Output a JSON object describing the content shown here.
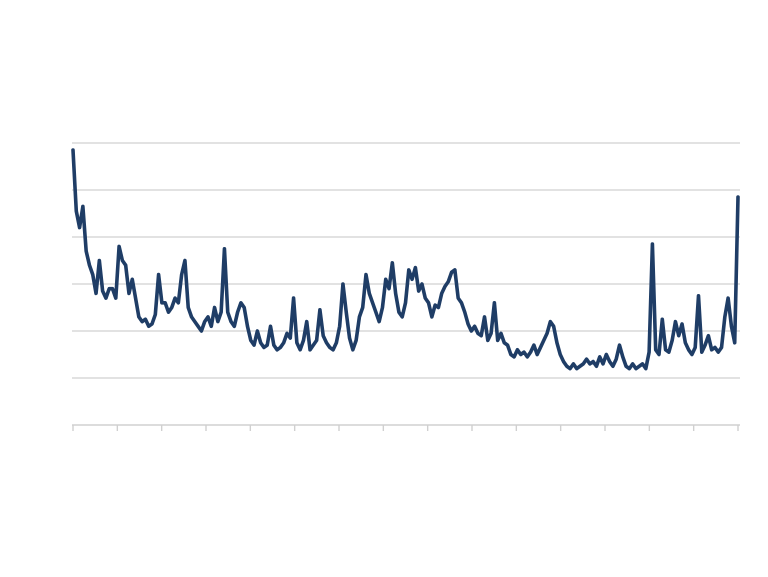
{
  "chart_data": {
    "type": "line",
    "grid": true,
    "legend": "none",
    "ylim": [
      0,
      6
    ],
    "y_gridlines": [
      1,
      2,
      3,
      4,
      5,
      6
    ],
    "x_tick_count": 16,
    "colors": {
      "line": "#1f3d66",
      "grid": "#d9d9d9",
      "axis": "#d0d0d0",
      "background": "#ffffff"
    },
    "series": [
      {
        "values": [
          5.85,
          4.55,
          4.2,
          4.65,
          3.7,
          3.4,
          3.2,
          2.8,
          3.5,
          2.85,
          2.7,
          2.9,
          2.9,
          2.7,
          3.8,
          3.5,
          3.4,
          2.8,
          3.1,
          2.7,
          2.3,
          2.2,
          2.25,
          2.1,
          2.15,
          2.35,
          3.2,
          2.6,
          2.6,
          2.4,
          2.5,
          2.7,
          2.6,
          3.2,
          3.5,
          2.5,
          2.3,
          2.2,
          2.1,
          2.0,
          2.2,
          2.3,
          2.1,
          2.5,
          2.2,
          2.4,
          3.75,
          2.4,
          2.2,
          2.1,
          2.4,
          2.6,
          2.5,
          2.1,
          1.8,
          1.7,
          2.0,
          1.75,
          1.65,
          1.7,
          2.1,
          1.7,
          1.6,
          1.65,
          1.75,
          1.95,
          1.85,
          2.7,
          1.75,
          1.6,
          1.8,
          2.2,
          1.6,
          1.7,
          1.8,
          2.45,
          1.9,
          1.75,
          1.65,
          1.6,
          1.75,
          2.1,
          3.0,
          2.4,
          1.85,
          1.6,
          1.8,
          2.3,
          2.5,
          3.2,
          2.8,
          2.6,
          2.4,
          2.2,
          2.5,
          3.1,
          2.9,
          3.45,
          2.8,
          2.4,
          2.3,
          2.6,
          3.3,
          3.1,
          3.35,
          2.85,
          3.0,
          2.7,
          2.6,
          2.3,
          2.55,
          2.5,
          2.8,
          2.95,
          3.05,
          3.25,
          3.3,
          2.7,
          2.6,
          2.4,
          2.15,
          2.0,
          2.1,
          1.95,
          1.9,
          2.3,
          1.8,
          1.95,
          2.6,
          1.8,
          1.95,
          1.75,
          1.7,
          1.5,
          1.45,
          1.6,
          1.5,
          1.55,
          1.45,
          1.55,
          1.7,
          1.5,
          1.65,
          1.8,
          1.95,
          2.2,
          2.1,
          1.75,
          1.5,
          1.35,
          1.25,
          1.2,
          1.3,
          1.2,
          1.25,
          1.3,
          1.4,
          1.3,
          1.35,
          1.25,
          1.45,
          1.3,
          1.5,
          1.35,
          1.25,
          1.4,
          1.7,
          1.45,
          1.25,
          1.2,
          1.3,
          1.2,
          1.25,
          1.3,
          1.2,
          1.55,
          3.85,
          1.6,
          1.5,
          2.25,
          1.6,
          1.55,
          1.8,
          2.2,
          1.9,
          2.15,
          1.75,
          1.6,
          1.5,
          1.65,
          2.75,
          1.55,
          1.7,
          1.9,
          1.6,
          1.65,
          1.55,
          1.65,
          2.3,
          2.7,
          2.1,
          1.75,
          4.85
        ]
      }
    ]
  }
}
